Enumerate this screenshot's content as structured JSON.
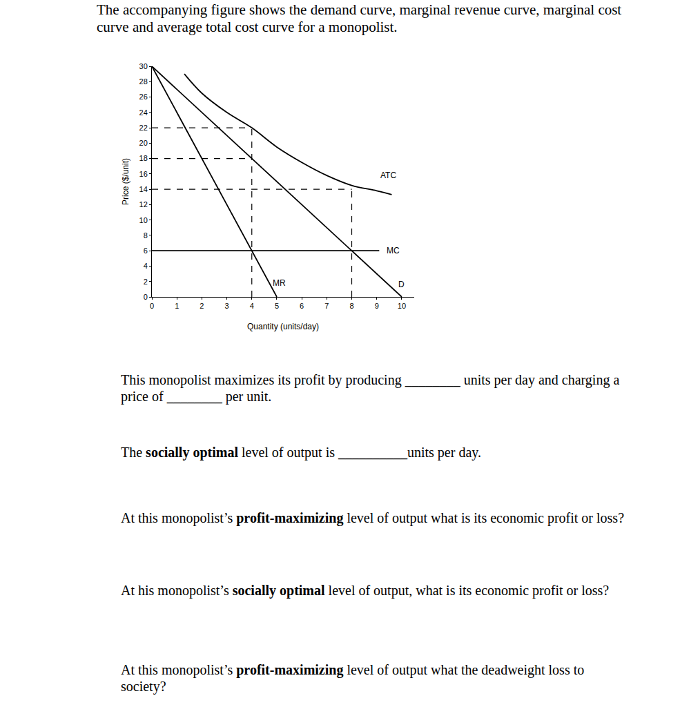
{
  "heading": "The accompanying figure shows the demand curve, marginal revenue curve, marginal cost curve and average total cost curve for a monopolist.",
  "chart_data": {
    "type": "line",
    "x_label": "Quantity (units/day)",
    "y_label": "Price ($/unit)",
    "xlim": [
      0,
      10.5
    ],
    "ylim": [
      0,
      30
    ],
    "xticks": [
      0,
      1,
      2,
      3,
      4,
      5,
      6,
      7,
      8,
      9,
      10
    ],
    "yticks": [
      0,
      2,
      4,
      6,
      8,
      10,
      12,
      14,
      16,
      18,
      20,
      22,
      24,
      26,
      28,
      30
    ],
    "grid": false,
    "color": "#000000",
    "series": [
      {
        "name": "ATC",
        "x": [
          1.3,
          2,
          3,
          4,
          5,
          6,
          7,
          8,
          9,
          9.6
        ],
        "values": [
          29,
          26.5,
          24,
          22,
          19.5,
          17.5,
          15.8,
          14.5,
          13.8,
          13.3
        ]
      },
      {
        "name": "MC",
        "x": [
          0,
          9.1
        ],
        "values": [
          6,
          6
        ]
      },
      {
        "name": "D",
        "x": [
          0,
          10
        ],
        "values": [
          30,
          0
        ]
      },
      {
        "name": "MR",
        "x": [
          0,
          5
        ],
        "values": [
          30,
          0
        ]
      }
    ],
    "guides": {
      "line_style": "dashed",
      "lines": [
        {
          "x": [
            0,
            4
          ],
          "values": [
            22,
            22
          ]
        },
        {
          "x": [
            0,
            4
          ],
          "values": [
            18,
            18
          ]
        },
        {
          "x": [
            0,
            8
          ],
          "values": [
            14,
            14
          ]
        },
        {
          "x": [
            4,
            4
          ],
          "values": [
            0,
            22
          ]
        },
        {
          "x": [
            8,
            8
          ],
          "values": [
            0,
            14
          ]
        }
      ]
    }
  },
  "questions": [
    [
      {
        "text": "This monopolist maximizes its profit by producing ________ units per day and charging a price of ________ per unit."
      }
    ],
    [
      {
        "text": "The "
      },
      {
        "text": "socially optimal",
        "bold": true
      },
      {
        "text": " level of output is __________units per day."
      }
    ],
    [
      {
        "text": "At this monopolist’s "
      },
      {
        "text": "profit-maximizing",
        "bold": true
      },
      {
        "text": " level of output what is its economic profit or loss?"
      }
    ],
    [
      {
        "text": "At his monopolist’s "
      },
      {
        "text": "socially optimal",
        "bold": true
      },
      {
        "text": " level of output, what is its economic profit or loss?"
      }
    ],
    [
      {
        "text": "At this monopolist’s "
      },
      {
        "text": "profit-maximizing",
        "bold": true
      },
      {
        "text": " level of output what the deadweight loss to society?"
      }
    ]
  ]
}
